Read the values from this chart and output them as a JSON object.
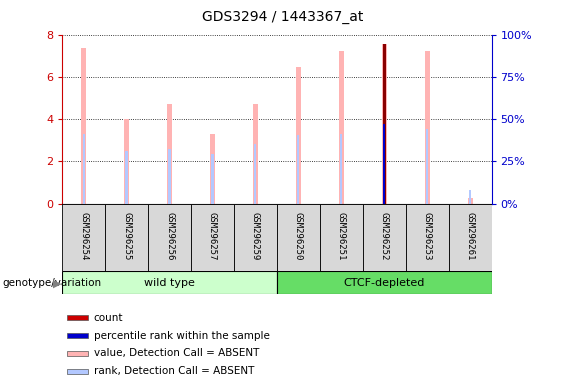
{
  "title": "GDS3294 / 1443367_at",
  "samples": [
    "GSM296254",
    "GSM296255",
    "GSM296256",
    "GSM296257",
    "GSM296259",
    "GSM296250",
    "GSM296251",
    "GSM296252",
    "GSM296253",
    "GSM296261"
  ],
  "pink_bar_heights": [
    7.35,
    4.0,
    4.7,
    3.3,
    4.7,
    6.45,
    7.2,
    7.55,
    7.2,
    0.25
  ],
  "light_blue_bar_heights": [
    3.3,
    2.5,
    2.6,
    2.35,
    2.8,
    3.25,
    3.3,
    0.0,
    3.55,
    0.65
  ],
  "dark_red_bar_heights": [
    0.0,
    0.0,
    0.0,
    0.0,
    0.0,
    0.0,
    0.0,
    7.55,
    0.0,
    0.0
  ],
  "blue_bar_heights": [
    0.0,
    0.0,
    0.0,
    0.0,
    0.0,
    0.0,
    0.0,
    3.75,
    0.0,
    0.0
  ],
  "ylim": [
    0,
    8
  ],
  "ylim_right": [
    0,
    100
  ],
  "yticks_left": [
    0,
    2,
    4,
    6,
    8
  ],
  "yticks_right": [
    0,
    25,
    50,
    75,
    100
  ],
  "ytick_right_labels": [
    "0%",
    "25%",
    "50%",
    "75%",
    "100%"
  ],
  "group_labels": [
    "wild type",
    "CTCF-depleted"
  ],
  "group_color_light": "#ccffcc",
  "group_color_dark": "#66dd66",
  "pink_color": "#ffb3b3",
  "light_blue_color": "#b3c8ff",
  "dark_red_color": "#8b0000",
  "blue_color": "#0000cc",
  "left_tick_color": "#cc0000",
  "right_tick_color": "#0000cc",
  "legend_entries": [
    "count",
    "percentile rank within the sample",
    "value, Detection Call = ABSENT",
    "rank, Detection Call = ABSENT"
  ],
  "legend_colors": [
    "#cc0000",
    "#0000cc",
    "#ffb3b3",
    "#b3c8ff"
  ],
  "pink_bar_width": 0.12,
  "light_blue_bar_width": 0.05,
  "dark_red_bar_width": 0.07,
  "blue_bar_width": 0.04
}
